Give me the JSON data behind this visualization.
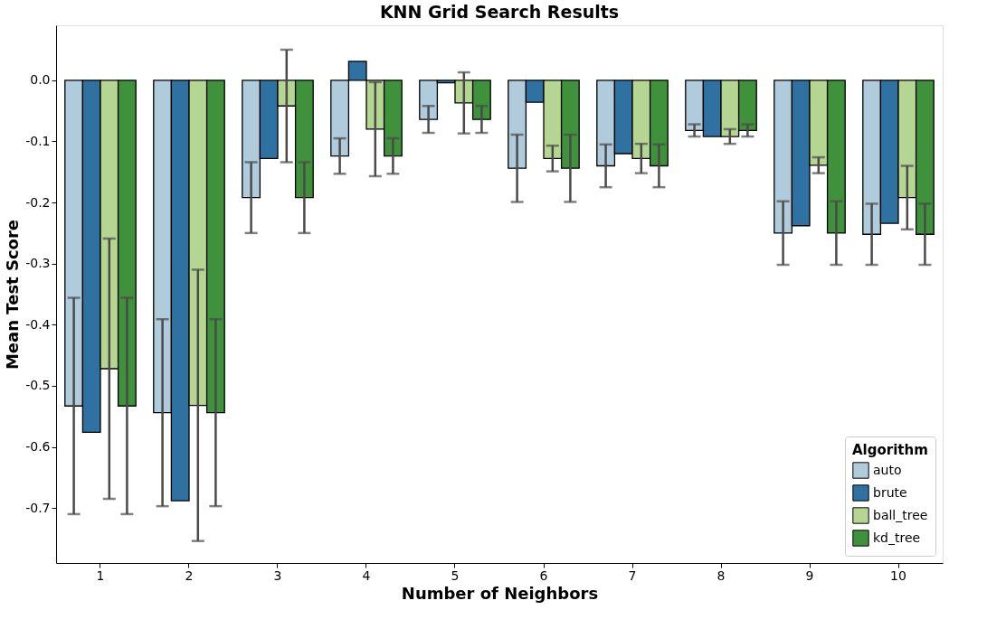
{
  "chart_data": {
    "type": "bar",
    "title": "KNN Grid Search Results",
    "xlabel": "Number of Neighbors",
    "ylabel": "Mean Test Score",
    "legend_title": "Algorithm",
    "categories": [
      "1",
      "2",
      "3",
      "4",
      "5",
      "6",
      "7",
      "8",
      "9",
      "10"
    ],
    "series": [
      {
        "name": "auto",
        "color": "#afcbdc",
        "values": [
          -0.533,
          -0.544,
          -0.192,
          -0.124,
          -0.064,
          -0.144,
          -0.14,
          -0.082,
          -0.25,
          -0.252
        ],
        "errors": [
          0.177,
          0.153,
          0.058,
          0.029,
          0.022,
          0.055,
          0.035,
          0.01,
          0.052,
          0.05
        ]
      },
      {
        "name": "brute",
        "color": "#2f72a1",
        "values": [
          -0.576,
          -0.688,
          -0.128,
          0.031,
          -0.004,
          -0.036,
          -0.12,
          -0.092,
          -0.238,
          -0.234
        ]
      },
      {
        "name": "ball_tree",
        "color": "#b5d692",
        "values": [
          -0.472,
          -0.532,
          -0.042,
          -0.08,
          -0.037,
          -0.128,
          -0.128,
          -0.092,
          -0.139,
          -0.192
        ],
        "errors": [
          0.213,
          0.222,
          0.092,
          0.077,
          0.05,
          0.021,
          0.024,
          0.012,
          0.013,
          0.052
        ]
      },
      {
        "name": "kd_tree",
        "color": "#3f923b",
        "values": [
          -0.533,
          -0.544,
          -0.192,
          -0.124,
          -0.064,
          -0.144,
          -0.14,
          -0.082,
          -0.25,
          -0.252
        ],
        "errors": [
          0.177,
          0.153,
          0.058,
          0.029,
          0.022,
          0.055,
          0.035,
          0.01,
          0.052,
          0.05
        ]
      }
    ],
    "ylim": [
      -0.79,
      0.09
    ],
    "yticks": [
      {
        "value": 0,
        "label": "0.0"
      },
      -0.1,
      -0.2,
      -0.3,
      -0.4,
      -0.5,
      -0.6,
      -0.7
    ],
    "grid": false,
    "legend": "bottom right"
  }
}
